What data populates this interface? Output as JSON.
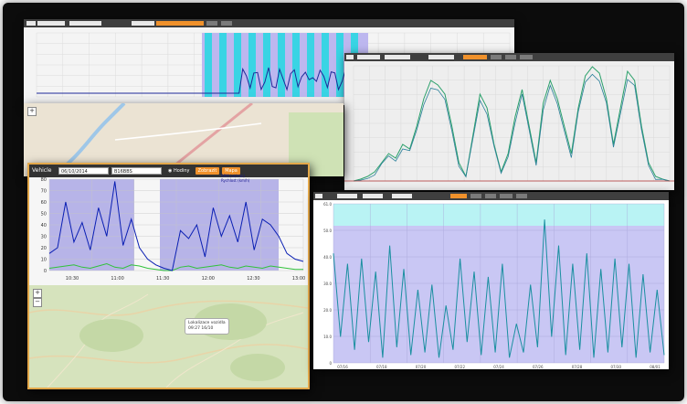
{
  "left_panel": {
    "labels": {
      "vehicle": "Vehicle"
    },
    "inputs": {
      "date": "06/10/2014",
      "plate": "B16BBS"
    },
    "radio": "Hodiny",
    "buttons": {
      "show": "Zobrazit",
      "map": "Mapa"
    },
    "chart_legend": {
      "line1": "RPM (ot/min)",
      "line2": "Rychlost (km/h)"
    },
    "chart": {
      "y_ticks": [
        "80",
        "70",
        "60",
        "50",
        "40",
        "30",
        "20",
        "10",
        "0"
      ],
      "x_ticks": [
        "10:30",
        "11:00",
        "11:30",
        "12:00",
        "12:30",
        "13:00"
      ]
    },
    "map_callout": {
      "line1": "Lokalizace vozidla",
      "line2": "09:27 16/10"
    }
  },
  "bottom_right_panel": {
    "y_ticks": [
      "61.0",
      "50.0",
      "40.0",
      "30.0",
      "20.0",
      "10.0",
      "0"
    ],
    "x_ticks": [
      "07/16",
      "07/18",
      "07/20",
      "07/22",
      "07/24",
      "07/26",
      "07/28",
      "07/30",
      "08/01"
    ]
  },
  "chart_data": [
    {
      "type": "line",
      "title": "",
      "xlabel": "",
      "ylabel": "",
      "ylim": [
        0,
        80
      ],
      "x_ticks": [
        "10:30",
        "11:00",
        "11:30",
        "12:00",
        "12:30",
        "13:00"
      ],
      "series": [
        {
          "values": [
            15,
            20,
            60,
            25,
            42,
            18,
            55,
            30,
            78,
            22,
            45,
            20,
            10,
            5,
            2,
            0,
            35,
            28,
            40,
            12,
            55,
            30,
            48,
            25,
            60,
            18,
            45,
            40,
            30,
            15,
            10,
            8
          ]
        },
        {
          "values": [
            2,
            3,
            4,
            5,
            3,
            2,
            4,
            6,
            3,
            2,
            5,
            4,
            2,
            1,
            0,
            0,
            3,
            4,
            2,
            3,
            4,
            5,
            3,
            2,
            4,
            3,
            2,
            4,
            3,
            2,
            1,
            1
          ]
        }
      ],
      "grid": true
    },
    {
      "type": "line",
      "title": "",
      "xlabel": "",
      "ylabel": "",
      "ylim": [
        0,
        61
      ],
      "x_ticks": [
        "07/16",
        "07/18",
        "07/20",
        "07/22",
        "07/24",
        "07/26",
        "07/28",
        "07/30",
        "08/01"
      ],
      "series": [
        {
          "values": [
            42,
            10,
            38,
            5,
            40,
            8,
            35,
            2,
            45,
            6,
            36,
            3,
            28,
            4,
            30,
            2,
            22,
            5,
            40,
            8,
            35,
            3,
            33,
            4,
            38,
            2,
            15,
            4,
            30,
            6,
            55,
            10,
            45,
            3,
            38,
            5,
            42,
            2,
            36,
            4,
            40,
            6,
            38,
            2,
            34,
            4,
            28,
            3
          ]
        }
      ],
      "grid": true
    }
  ]
}
